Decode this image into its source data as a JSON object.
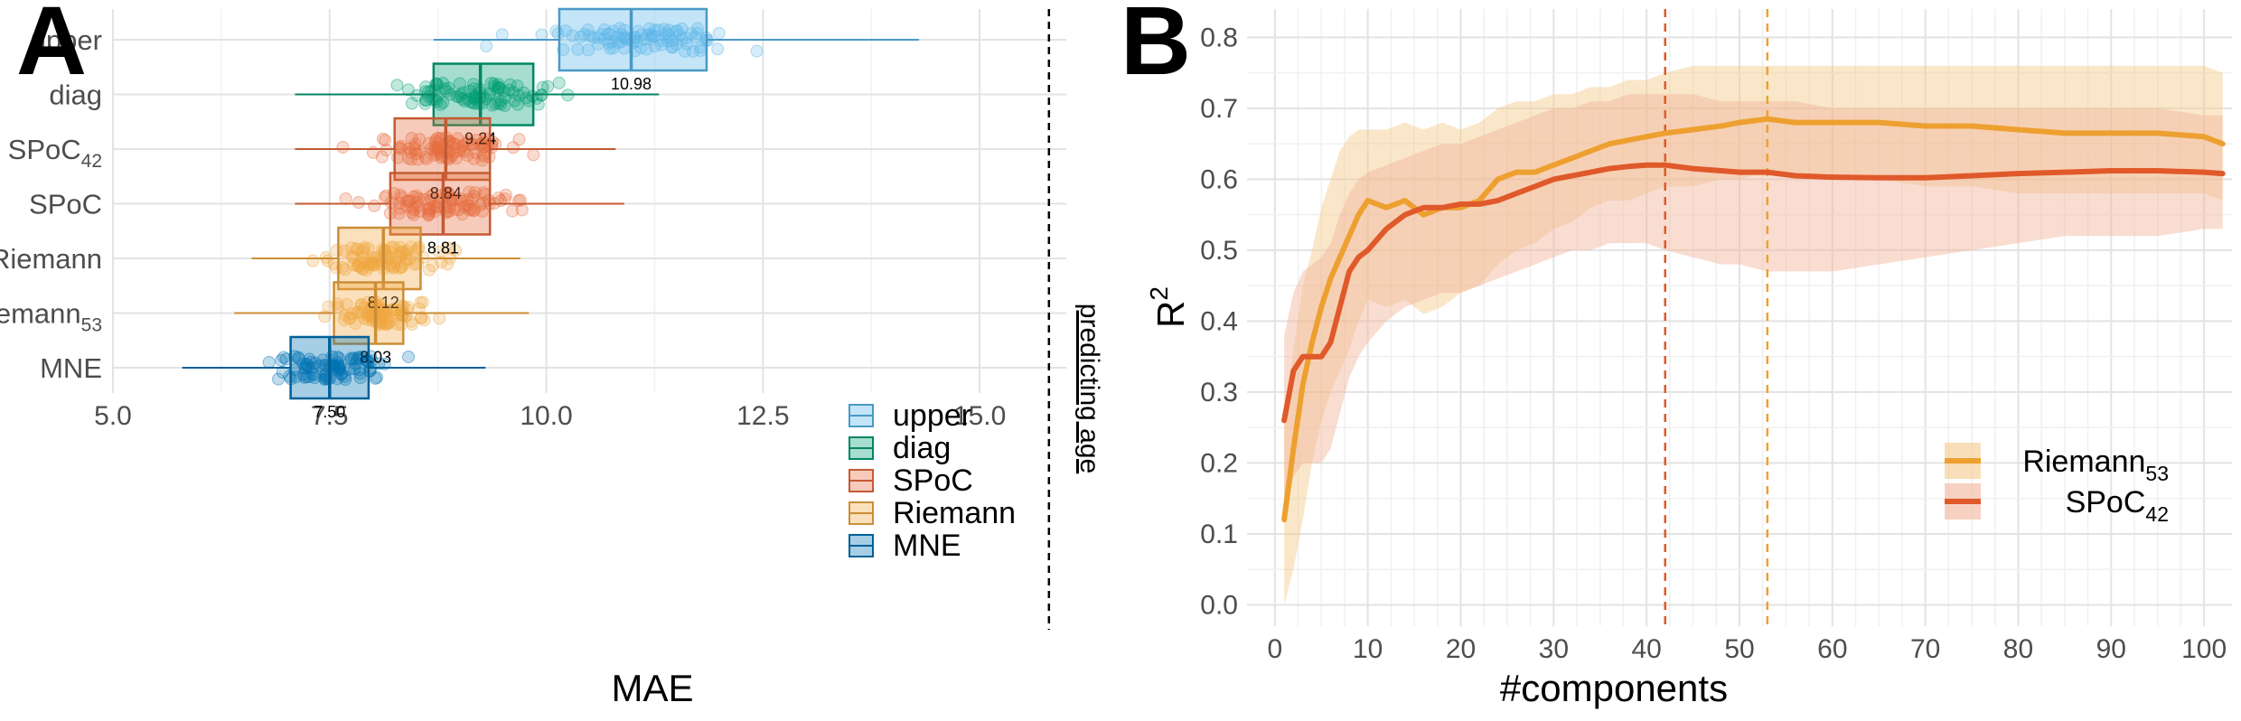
{
  "panel_a": {
    "letter": "A",
    "annotation": "predicting age",
    "chart_data": {
      "type": "boxplot",
      "xlabel": "MAE",
      "ylabel": "",
      "xlim": [
        5.0,
        16.0
      ],
      "xticks": [
        "5.0",
        "7.5",
        "10.0",
        "12.5",
        "15.0"
      ],
      "grid": true,
      "reference_line_x": 15.8,
      "categories": [
        {
          "label": "upper",
          "sub": "",
          "color": "#56B4E9",
          "median": 10.98,
          "median_label": "10.98",
          "q1": 10.15,
          "q3": 11.85,
          "whisker": [
            8.7,
            14.3
          ]
        },
        {
          "label": "diag",
          "sub": "",
          "color": "#009E73",
          "median": 9.24,
          "median_label": "9.24",
          "q1": 8.7,
          "q3": 9.85,
          "whisker": [
            7.1,
            11.3
          ]
        },
        {
          "label": "SPoC",
          "sub": "42",
          "color": "#E66A3C",
          "median": 8.84,
          "median_label": "8.84",
          "q1": 8.25,
          "q3": 9.35,
          "whisker": [
            7.1,
            10.8
          ]
        },
        {
          "label": "SPoC",
          "sub": "",
          "color": "#E66A3C",
          "median": 8.81,
          "median_label": "8.81",
          "q1": 8.2,
          "q3": 9.35,
          "whisker": [
            7.1,
            10.9
          ]
        },
        {
          "label": "Riemann",
          "sub": "",
          "color": "#F0A740",
          "median": 8.12,
          "median_label": "8.12",
          "q1": 7.6,
          "q3": 8.55,
          "whisker": [
            6.6,
            9.7
          ]
        },
        {
          "label": "Riemann",
          "sub": "53",
          "color": "#F0A740",
          "median": 8.03,
          "median_label": "8.03",
          "q1": 7.55,
          "q3": 8.35,
          "whisker": [
            6.4,
            9.8
          ]
        },
        {
          "label": "MNE",
          "sub": "",
          "color": "#0072B2",
          "median": 7.5,
          "median_label": "7.50",
          "q1": 7.05,
          "q3": 7.95,
          "whisker": [
            5.8,
            9.3
          ]
        }
      ],
      "legend": {
        "placement": "bottom-right",
        "entries": [
          {
            "label": "upper",
            "color": "#56B4E9"
          },
          {
            "label": "diag",
            "color": "#009E73"
          },
          {
            "label": "SPoC",
            "color": "#E66A3C"
          },
          {
            "label": "Riemann",
            "color": "#F0A740"
          },
          {
            "label": "MNE",
            "color": "#0072B2"
          }
        ]
      }
    }
  },
  "panel_b": {
    "letter": "B",
    "chart_data": {
      "type": "line",
      "xlabel": "#components",
      "ylabel": "R",
      "ylabel_sup": "2",
      "xlim": [
        -3,
        103
      ],
      "ylim": [
        -0.03,
        0.84
      ],
      "xticks": [
        "0",
        "10",
        "20",
        "30",
        "40",
        "50",
        "60",
        "70",
        "80",
        "90",
        "100"
      ],
      "yticks": [
        "0.0",
        "0.1",
        "0.2",
        "0.3",
        "0.4",
        "0.5",
        "0.6",
        "0.7",
        "0.8"
      ],
      "grid": true,
      "vlines": [
        {
          "x": 42,
          "color": "#E0592A"
        },
        {
          "x": 53,
          "color": "#EDA030"
        }
      ],
      "series": [
        {
          "name": "Riemann",
          "name_sub": "53",
          "color": "#EDA030",
          "band_color": "#F5C98A",
          "x": [
            1,
            2,
            3,
            4,
            5,
            6,
            7,
            8,
            9,
            10,
            12,
            14,
            16,
            18,
            20,
            22,
            24,
            26,
            28,
            30,
            32,
            34,
            36,
            38,
            40,
            42,
            45,
            48,
            50,
            53,
            56,
            60,
            65,
            70,
            75,
            80,
            85,
            90,
            95,
            100,
            102
          ],
          "y": [
            0.12,
            0.22,
            0.31,
            0.37,
            0.42,
            0.46,
            0.49,
            0.52,
            0.55,
            0.57,
            0.56,
            0.57,
            0.55,
            0.56,
            0.56,
            0.57,
            0.6,
            0.61,
            0.61,
            0.62,
            0.63,
            0.64,
            0.65,
            0.655,
            0.66,
            0.665,
            0.67,
            0.675,
            0.68,
            0.685,
            0.68,
            0.68,
            0.68,
            0.675,
            0.675,
            0.67,
            0.665,
            0.665,
            0.665,
            0.66,
            0.65
          ],
          "lower": [
            0.0,
            0.05,
            0.12,
            0.2,
            0.26,
            0.3,
            0.33,
            0.36,
            0.4,
            0.43,
            0.42,
            0.43,
            0.41,
            0.42,
            0.44,
            0.45,
            0.48,
            0.5,
            0.51,
            0.53,
            0.54,
            0.56,
            0.57,
            0.57,
            0.58,
            0.59,
            0.59,
            0.6,
            0.6,
            0.61,
            0.6,
            0.6,
            0.6,
            0.59,
            0.59,
            0.58,
            0.58,
            0.58,
            0.58,
            0.58,
            0.57
          ],
          "upper": [
            0.25,
            0.36,
            0.45,
            0.5,
            0.56,
            0.6,
            0.64,
            0.66,
            0.67,
            0.67,
            0.67,
            0.68,
            0.67,
            0.68,
            0.67,
            0.68,
            0.7,
            0.71,
            0.71,
            0.72,
            0.72,
            0.73,
            0.73,
            0.74,
            0.74,
            0.75,
            0.76,
            0.76,
            0.76,
            0.76,
            0.76,
            0.76,
            0.76,
            0.76,
            0.76,
            0.76,
            0.76,
            0.76,
            0.76,
            0.76,
            0.75
          ]
        },
        {
          "name": "SPoC",
          "name_sub": "42",
          "color": "#E0592A",
          "band_color": "#F2B49A",
          "x": [
            1,
            2,
            3,
            4,
            5,
            6,
            7,
            8,
            9,
            10,
            12,
            14,
            16,
            18,
            20,
            22,
            24,
            26,
            28,
            30,
            32,
            34,
            36,
            38,
            40,
            42,
            45,
            48,
            50,
            53,
            56,
            60,
            65,
            70,
            75,
            80,
            85,
            90,
            95,
            100,
            102
          ],
          "y": [
            0.26,
            0.33,
            0.35,
            0.35,
            0.35,
            0.37,
            0.42,
            0.47,
            0.49,
            0.5,
            0.53,
            0.55,
            0.56,
            0.56,
            0.565,
            0.565,
            0.57,
            0.58,
            0.59,
            0.6,
            0.605,
            0.61,
            0.615,
            0.618,
            0.62,
            0.62,
            0.615,
            0.612,
            0.61,
            0.61,
            0.605,
            0.603,
            0.602,
            0.602,
            0.605,
            0.608,
            0.61,
            0.612,
            0.612,
            0.61,
            0.608
          ],
          "lower": [
            0.13,
            0.18,
            0.2,
            0.2,
            0.2,
            0.22,
            0.27,
            0.32,
            0.35,
            0.37,
            0.4,
            0.42,
            0.43,
            0.44,
            0.44,
            0.45,
            0.46,
            0.47,
            0.48,
            0.49,
            0.5,
            0.5,
            0.51,
            0.51,
            0.51,
            0.5,
            0.49,
            0.48,
            0.48,
            0.47,
            0.47,
            0.47,
            0.48,
            0.49,
            0.5,
            0.51,
            0.52,
            0.52,
            0.52,
            0.53,
            0.53
          ],
          "upper": [
            0.38,
            0.44,
            0.47,
            0.48,
            0.49,
            0.51,
            0.55,
            0.58,
            0.6,
            0.61,
            0.62,
            0.63,
            0.64,
            0.65,
            0.65,
            0.66,
            0.67,
            0.68,
            0.69,
            0.7,
            0.7,
            0.71,
            0.71,
            0.72,
            0.72,
            0.72,
            0.72,
            0.71,
            0.71,
            0.71,
            0.71,
            0.7,
            0.7,
            0.7,
            0.7,
            0.7,
            0.7,
            0.7,
            0.7,
            0.69,
            0.69
          ]
        }
      ],
      "legend": {
        "placement": "bottom-right"
      }
    }
  }
}
